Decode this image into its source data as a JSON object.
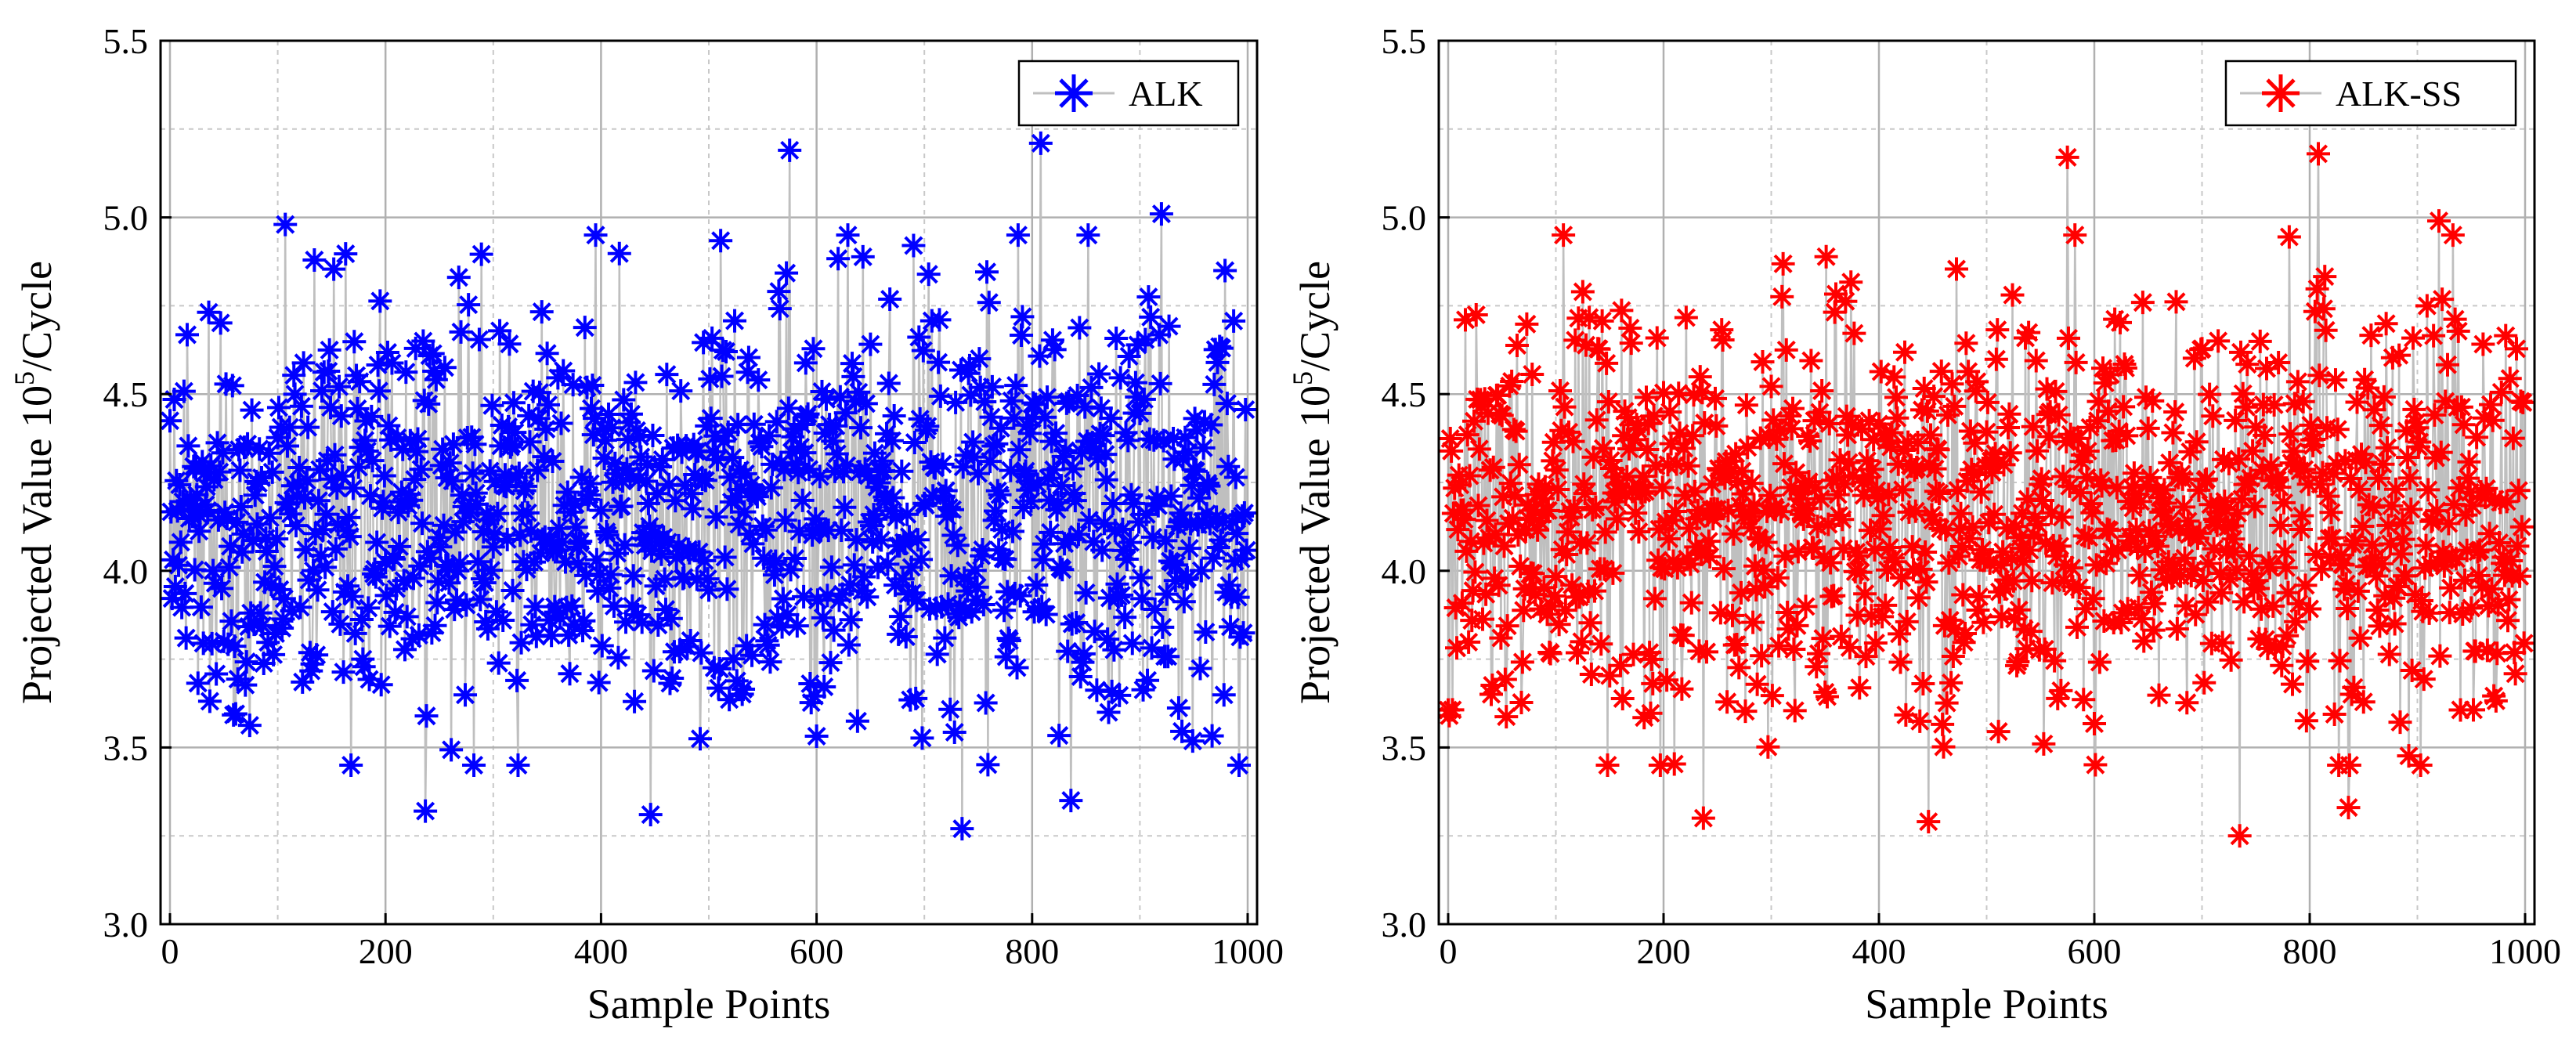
{
  "chart_data": [
    {
      "type": "scatter",
      "connected": true,
      "marker": "asterisk",
      "series": [
        {
          "name": "ALK",
          "color": "#0000ff",
          "line_color": "#bfbfbf",
          "points": "1000 points, values approximately 3.27–5.20, mean ≈ 4.17"
        }
      ],
      "legend": "ALK",
      "xlabel": "Sample Points",
      "ylabel": "Projected Value 10",
      "ylabel_sup": "5",
      "ylabel_suffix": "/Cycle",
      "xlim": [
        0,
        1000
      ],
      "ylim": [
        3.0,
        5.5
      ],
      "xticks": [
        "0",
        "200",
        "400",
        "600",
        "800",
        "1000"
      ],
      "yticks": [
        "3.0",
        "3.5",
        "4.0",
        "4.5",
        "5.0",
        "5.5"
      ],
      "grid": true,
      "legend_position": "top-right",
      "generation": {
        "n": 1000,
        "mean": 4.17,
        "sd": 0.3,
        "seed": 11
      },
      "notable_points": [
        [
          237,
          3.32
        ],
        [
          446,
          3.31
        ],
        [
          735,
          3.27
        ],
        [
          836,
          3.35
        ],
        [
          575,
          5.19
        ],
        [
          808,
          5.21
        ],
        [
          107,
          4.98
        ],
        [
          920,
          5.01
        ]
      ]
    },
    {
      "type": "scatter",
      "connected": true,
      "marker": "asterisk",
      "series": [
        {
          "name": "ALK-SS",
          "color": "#ff0000",
          "line_color": "#bfbfbf",
          "points": "1000 points, values approximately 3.25–5.18, mean ≈ 4.15"
        }
      ],
      "legend": "ALK-SS",
      "xlabel": "Sample Points",
      "ylabel": "Projected Value 10",
      "ylabel_sup": "5",
      "ylabel_suffix": "/Cycle",
      "xlim": [
        0,
        1000
      ],
      "ylim": [
        3.0,
        5.5
      ],
      "xticks": [
        "0",
        "200",
        "400",
        "600",
        "800",
        "1000"
      ],
      "yticks": [
        "3.0",
        "3.5",
        "4.0",
        "4.5",
        "5.0",
        "5.5"
      ],
      "grid": true,
      "legend_position": "top-right",
      "generation": {
        "n": 1000,
        "mean": 4.15,
        "sd": 0.3,
        "seed": 29
      },
      "notable_points": [
        [
          237,
          3.3
        ],
        [
          446,
          3.29
        ],
        [
          735,
          3.25
        ],
        [
          836,
          3.33
        ],
        [
          575,
          5.17
        ],
        [
          808,
          5.18
        ],
        [
          107,
          4.95
        ],
        [
          920,
          4.99
        ]
      ]
    }
  ]
}
